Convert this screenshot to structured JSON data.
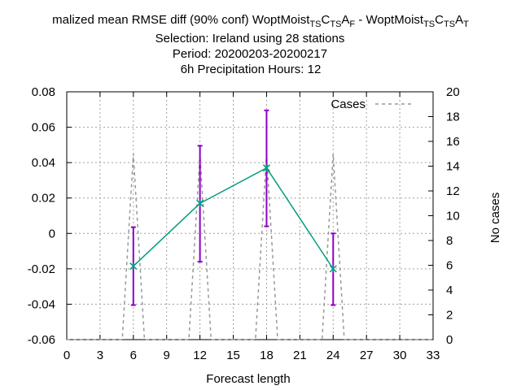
{
  "chart_data": {
    "type": "line",
    "title_lines": [
      "malized mean RMSE diff (90% conf) WoptMoist",
      "Selection: Ireland using    28 stations",
      "Period: 20200203-20200217",
      "6h Precipitation   Hours:  12"
    ],
    "title_suffix": " - WoptMoist",
    "xlabel": "Forecast length",
    "ylabel_right": "No cases",
    "xlim": [
      0,
      33
    ],
    "ylim": [
      -0.06,
      0.08
    ],
    "y2lim": [
      0,
      20
    ],
    "xticks": [
      0,
      3,
      6,
      9,
      12,
      15,
      18,
      21,
      24,
      27,
      30,
      33
    ],
    "yticks": [
      "0.08",
      "0.06",
      "0.04",
      "0.02",
      "0",
      "-0.02",
      "-0.04",
      "-0.06"
    ],
    "ytick_values": [
      0.08,
      0.06,
      0.04,
      0.02,
      0,
      -0.02,
      -0.04,
      -0.06
    ],
    "y2ticks": [
      0,
      2,
      4,
      6,
      8,
      10,
      12,
      14,
      16,
      18,
      20
    ],
    "grid": true,
    "legend_position": "top-right",
    "legend_label": "Cases",
    "series": [
      {
        "x": [
          6,
          12,
          18,
          24
        ],
        "y": [
          -0.0185,
          0.017,
          0.037,
          -0.02
        ],
        "err_low": [
          -0.0405,
          -0.016,
          0.004,
          -0.0405
        ],
        "err_high": [
          0.0035,
          0.0495,
          0.0695,
          0.0
        ],
        "color": "#009c7c",
        "errcolor": "#8f00c8"
      },
      {
        "name": "Cases",
        "axis": "y2",
        "x": [
          0,
          5,
          6,
          7,
          11,
          12,
          13,
          17,
          18,
          19,
          23,
          24,
          25,
          33
        ],
        "y": [
          0,
          0,
          15,
          0,
          0,
          15,
          0,
          0,
          15,
          0,
          0,
          15,
          0,
          0
        ],
        "color": "#999999"
      }
    ]
  }
}
